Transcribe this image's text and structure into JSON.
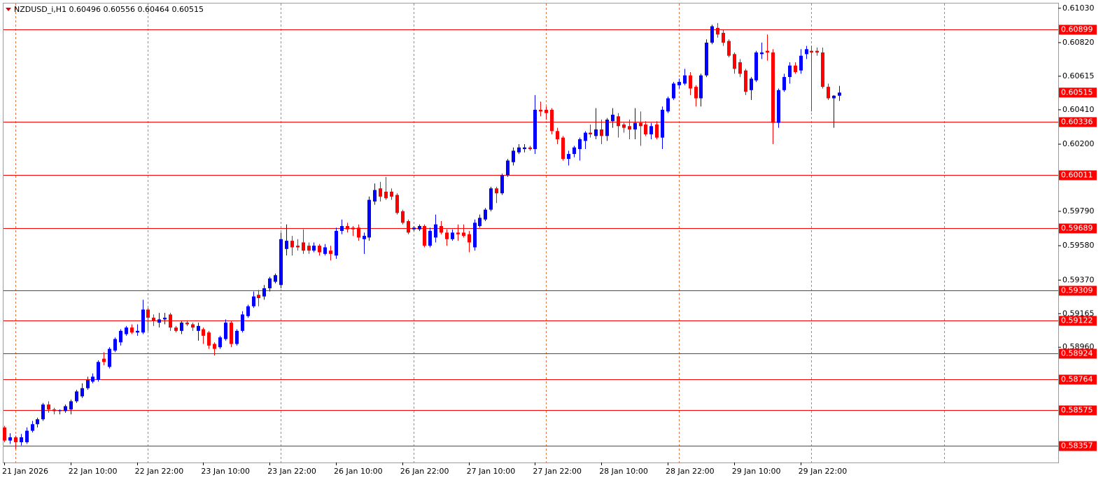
{
  "chart_data": {
    "type": "candlestick",
    "title": "NZDUSD_i,H1  0.60496 0.60556 0.60464 0.60515",
    "categories": [
      "21 Jan 2026",
      null,
      null,
      null,
      null,
      null,
      null,
      null,
      null,
      null,
      null,
      null,
      "22 Jan 10:00",
      null,
      null,
      null,
      null,
      null,
      null,
      null,
      null,
      null,
      null,
      null,
      "22 Jan 22:00",
      null,
      null,
      null,
      null,
      null,
      null,
      null,
      null,
      null,
      null,
      null,
      "23 Jan 10:00",
      null,
      null,
      null,
      null,
      null,
      null,
      null,
      null,
      null,
      null,
      null,
      "23 Jan 22:00",
      null,
      null,
      null,
      null,
      null,
      null,
      null,
      null,
      null,
      null,
      null,
      "26 Jan 10:00",
      null,
      null,
      null,
      null,
      null,
      null,
      null,
      null,
      null,
      null,
      null,
      "26 Jan 22:00",
      null,
      null,
      null,
      null,
      null,
      null,
      null,
      null,
      null,
      null,
      null,
      "27 Jan 10:00",
      null,
      null,
      null,
      null,
      null,
      null,
      null,
      null,
      null,
      null,
      null,
      "27 Jan 22:00",
      null,
      null,
      null,
      null,
      null,
      null,
      null,
      null,
      null,
      null,
      null,
      "28 Jan 10:00",
      null,
      null,
      null,
      null,
      null,
      null,
      null,
      null,
      null,
      null,
      null,
      "28 Jan 22:00",
      null,
      null,
      null,
      null,
      null,
      null,
      null,
      null,
      null,
      null,
      null,
      "29 Jan 10:00",
      null,
      null,
      null,
      null,
      null,
      null,
      null,
      null,
      null,
      null,
      null,
      "29 Jan 22:00",
      null,
      null,
      null,
      null,
      null,
      null,
      null
    ],
    "open": [
      0.5847,
      0.5839,
      0.5841,
      0.5838,
      0.5838,
      0.5845,
      0.5849,
      0.5852,
      0.5861,
      0.5858,
      0.5857,
      0.5857,
      0.5858,
      0.5863,
      0.5866,
      0.5871,
      0.5875,
      0.5876,
      0.5889,
      0.5884,
      0.5894,
      0.5899,
      0.5904,
      0.5908,
      0.5905,
      0.5905,
      0.5919,
      0.5914,
      0.5911,
      0.5913,
      0.5916,
      0.5908,
      0.5906,
      0.5911,
      0.591,
      0.5906,
      0.5907,
      0.5905,
      0.5898,
      0.5896,
      0.5901,
      0.5911,
      0.5898,
      0.5906,
      0.5915,
      0.5921,
      0.5928,
      0.5927,
      0.5932,
      0.5936,
      0.5934,
      0.5956,
      0.5961,
      0.5958,
      0.596,
      0.5958,
      0.5955,
      0.5958,
      0.5953,
      0.5955,
      0.5952,
      0.5967,
      0.597,
      0.5969,
      0.5969,
      0.5962,
      0.5963,
      0.5985,
      0.5993,
      0.5991,
      0.5991,
      0.5989,
      0.5979,
      0.5973,
      0.5968,
      0.5968,
      0.597,
      0.5958,
      0.5963,
      0.597,
      0.5966,
      0.5962,
      0.5966,
      0.5966,
      0.5965,
      0.5957,
      0.597,
      0.5974,
      0.598,
      0.5993,
      0.599,
      0.6001,
      0.6009,
      0.6015,
      0.6017,
      0.6018,
      0.6017,
      0.6041,
      0.6041,
      0.6041,
      0.6028,
      0.6024,
      0.6011,
      0.6014,
      0.6017,
      0.6022,
      0.6027,
      0.6025,
      0.6029,
      0.6025,
      0.6034,
      0.6037,
      0.6032,
      0.6031,
      0.6029,
      0.6033,
      0.6032,
      0.6026,
      0.6032,
      0.6024,
      0.604,
      0.6048,
      0.6056,
      0.6057,
      0.6062,
      0.6055,
      0.6048,
      0.6062,
      0.6082,
      0.6091,
      0.6088,
      0.6083,
      0.6075,
      0.607,
      0.6065,
      0.6053,
      0.6059,
      0.6075,
      0.6077,
      0.6076,
      0.6033,
      0.6053,
      0.6061,
      0.6068,
      0.6065,
      0.6075,
      0.6077,
      0.6077,
      0.6076,
      0.6055,
      0.6048,
      0.60496
    ],
    "high": [
      0.5848,
      0.58435,
      0.5842,
      0.5843,
      0.5847,
      0.5851,
      0.5853,
      0.5862,
      0.5863,
      0.5859,
      0.5858,
      0.5861,
      0.5864,
      0.587,
      0.5874,
      0.5878,
      0.588,
      0.5888,
      0.5893,
      0.5896,
      0.5902,
      0.5907,
      0.5909,
      0.591,
      0.591,
      0.5925,
      0.592,
      0.5916,
      0.5917,
      0.5917,
      0.5917,
      0.5909,
      0.5912,
      0.5912,
      0.5911,
      0.5911,
      0.5908,
      0.5906,
      0.5899,
      0.5903,
      0.5913,
      0.5912,
      0.5907,
      0.5918,
      0.5922,
      0.593,
      0.5931,
      0.5934,
      0.5939,
      0.5941,
      0.5966,
      0.5971,
      0.5964,
      0.5962,
      0.5968,
      0.596,
      0.596,
      0.5959,
      0.5959,
      0.5958,
      0.5969,
      0.5974,
      0.5972,
      0.597,
      0.5971,
      0.5966,
      0.5988,
      0.5996,
      0.5997,
      0.6,
      0.5993,
      0.599,
      0.598,
      0.5974,
      0.597,
      0.5971,
      0.5971,
      0.5969,
      0.5977,
      0.5973,
      0.5968,
      0.5968,
      0.5971,
      0.5971,
      0.5967,
      0.5974,
      0.5977,
      0.5981,
      0.5994,
      0.5994,
      0.6002,
      0.6011,
      0.6018,
      0.602,
      0.602,
      0.6019,
      0.605,
      0.6046,
      0.6043,
      0.6042,
      0.603,
      0.6025,
      0.6016,
      0.6019,
      0.6024,
      0.6028,
      0.6032,
      0.6042,
      0.6035,
      0.6036,
      0.6042,
      0.6039,
      0.6033,
      0.6035,
      0.6042,
      0.604,
      0.6034,
      0.6033,
      0.6034,
      0.6043,
      0.6049,
      0.6058,
      0.606,
      0.6066,
      0.6064,
      0.6056,
      0.6063,
      0.6084,
      0.6093,
      0.6094,
      0.609,
      0.6084,
      0.6076,
      0.6072,
      0.6066,
      0.6061,
      0.6077,
      0.6082,
      0.6087,
      0.6078,
      0.6054,
      0.6063,
      0.607,
      0.607,
      0.6078,
      0.608,
      0.608,
      0.6079,
      0.6079,
      0.6057,
      0.605,
      0.60556
    ],
    "low": [
      0.5838,
      0.5837,
      0.5834,
      0.5836,
      0.5837,
      0.5844,
      0.5847,
      0.5851,
      0.5856,
      0.5855,
      0.5855,
      0.5856,
      0.5855,
      0.5862,
      0.5865,
      0.587,
      0.5874,
      0.5875,
      0.5885,
      0.5883,
      0.5893,
      0.5897,
      0.5903,
      0.5904,
      0.5903,
      0.5904,
      0.5906,
      0.5909,
      0.5908,
      0.591,
      0.5906,
      0.5905,
      0.5904,
      0.5909,
      0.5906,
      0.59,
      0.5898,
      0.5895,
      0.5891,
      0.5895,
      0.59,
      0.5896,
      0.5897,
      0.5905,
      0.5914,
      0.592,
      0.5921,
      0.5925,
      0.593,
      0.5935,
      0.5932,
      0.5952,
      0.5952,
      0.5955,
      0.5953,
      0.5953,
      0.5954,
      0.5952,
      0.5952,
      0.5949,
      0.595,
      0.5965,
      0.5966,
      0.5964,
      0.5961,
      0.5953,
      0.5961,
      0.5983,
      0.5985,
      0.5986,
      0.5986,
      0.5977,
      0.5971,
      0.5965,
      0.5967,
      0.5967,
      0.5957,
      0.5957,
      0.596,
      0.5965,
      0.5958,
      0.5961,
      0.5961,
      0.5963,
      0.5954,
      0.5955,
      0.5969,
      0.5973,
      0.5979,
      0.5984,
      0.5989,
      0.6,
      0.6007,
      0.6014,
      0.6015,
      0.6016,
      0.6014,
      0.6037,
      0.6035,
      0.6026,
      0.602,
      0.601,
      0.6007,
      0.6012,
      0.601,
      0.6017,
      0.6024,
      0.6023,
      0.602,
      0.6022,
      0.603,
      0.6024,
      0.6027,
      0.6023,
      0.6023,
      0.6019,
      0.6025,
      0.6023,
      0.6023,
      0.6017,
      0.6039,
      0.6047,
      0.6054,
      0.6056,
      0.605,
      0.6043,
      0.6043,
      0.6061,
      0.6081,
      0.6085,
      0.608,
      0.6073,
      0.6063,
      0.6061,
      0.605,
      0.6047,
      0.6058,
      0.6072,
      0.6071,
      0.602,
      0.603,
      0.6052,
      0.6057,
      0.6063,
      0.6063,
      0.6072,
      0.604,
      0.6074,
      0.6054,
      0.6047,
      0.603,
      0.60464
    ],
    "close": [
      0.5839,
      0.5841,
      0.5838,
      0.5841,
      0.5845,
      0.5849,
      0.5852,
      0.5861,
      0.5858,
      0.5857,
      0.58575,
      0.586,
      0.5863,
      0.5869,
      0.5871,
      0.5876,
      0.5878,
      0.5887,
      0.5887,
      0.5895,
      0.5901,
      0.5906,
      0.5908,
      0.5905,
      0.5906,
      0.5919,
      0.5914,
      0.5912,
      0.5913,
      0.5914,
      0.5908,
      0.5906,
      0.5911,
      0.591,
      0.5908,
      0.5909,
      0.5903,
      0.5897,
      0.5895,
      0.5902,
      0.5911,
      0.5898,
      0.5906,
      0.5916,
      0.5921,
      0.5927,
      0.5926,
      0.5932,
      0.5938,
      0.594,
      0.5962,
      0.5961,
      0.5957,
      0.5957,
      0.5955,
      0.5955,
      0.5958,
      0.5954,
      0.5957,
      0.5953,
      0.5967,
      0.597,
      0.5968,
      0.5968,
      0.5963,
      0.5964,
      0.5986,
      0.5992,
      0.5988,
      0.5987,
      0.5988,
      0.5978,
      0.5972,
      0.5966,
      0.5969,
      0.597,
      0.5958,
      0.5967,
      0.5971,
      0.5966,
      0.5962,
      0.5966,
      0.5965,
      0.5964,
      0.596,
      0.5972,
      0.5975,
      0.598,
      0.5993,
      0.599,
      0.6001,
      0.601,
      0.6016,
      0.6018,
      0.6018,
      0.6017,
      0.6041,
      0.604,
      0.6039,
      0.6028,
      0.6023,
      0.6011,
      0.6014,
      0.6018,
      0.6023,
      0.6027,
      0.6026,
      0.6029,
      0.6025,
      0.6035,
      0.6038,
      0.6031,
      0.603,
      0.6029,
      0.6033,
      0.6031,
      0.6026,
      0.6031,
      0.6024,
      0.6041,
      0.6048,
      0.6057,
      0.6058,
      0.6062,
      0.6054,
      0.6048,
      0.6062,
      0.6082,
      0.6092,
      0.6087,
      0.6082,
      0.6074,
      0.6066,
      0.6063,
      0.6052,
      0.606,
      0.6076,
      0.6076,
      0.6076,
      0.6033,
      0.6053,
      0.6061,
      0.6068,
      0.6064,
      0.6074,
      0.6078,
      0.6076,
      0.6076,
      0.6055,
      0.6048,
      0.60496,
      0.60515
    ],
    "up_color": "#0000ff",
    "down_color": "#ff0000",
    "ylim": [
      0.58256,
      0.61059
    ],
    "yticks": [
      {
        "value": 0.6103,
        "label": "0.61030"
      },
      {
        "value": 0.6082,
        "label": "0.60820"
      },
      0.60615,
      {
        "value": 0.6041,
        "label": "0.60410"
      },
      {
        "value": 0.602,
        "label": "0.60200"
      },
      {
        "value": 0.5979,
        "label": "0.59790"
      },
      {
        "value": 0.5958,
        "label": "0.59580"
      },
      {
        "value": 0.5937,
        "label": "0.59370"
      },
      0.59165,
      {
        "value": 0.5896,
        "label": "0.58960"
      }
    ],
    "levels": [
      0.60899,
      0.60336,
      0.60011,
      0.59689,
      0.59309,
      0.59122,
      0.58924,
      0.58764,
      0.58575,
      0.58357
    ],
    "level_color": "#ff0000",
    "grid": true,
    "grid_color": "#ff6a2a"
  }
}
